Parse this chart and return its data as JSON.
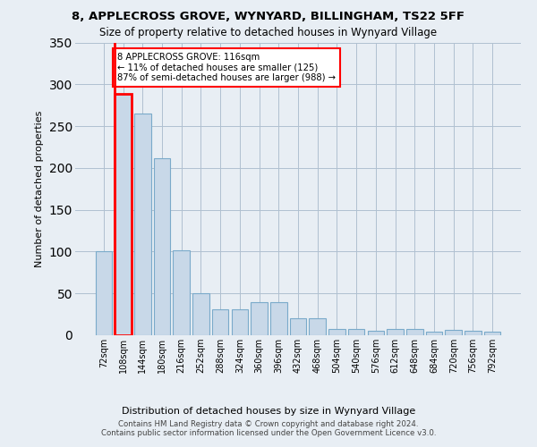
{
  "title": "8, APPLECROSS GROVE, WYNYARD, BILLINGHAM, TS22 5FF",
  "subtitle": "Size of property relative to detached houses in Wynyard Village",
  "xlabel": "Distribution of detached houses by size in Wynyard Village",
  "ylabel": "Number of detached properties",
  "footer_line1": "Contains HM Land Registry data © Crown copyright and database right 2024.",
  "footer_line2": "Contains public sector information licensed under the Open Government Licence v3.0.",
  "bar_labels": [
    "72sqm",
    "108sqm",
    "144sqm",
    "180sqm",
    "216sqm",
    "252sqm",
    "288sqm",
    "324sqm",
    "360sqm",
    "396sqm",
    "432sqm",
    "468sqm",
    "504sqm",
    "540sqm",
    "576sqm",
    "612sqm",
    "648sqm",
    "684sqm",
    "720sqm",
    "756sqm",
    "792sqm"
  ],
  "bar_values": [
    100,
    289,
    265,
    212,
    101,
    50,
    31,
    31,
    40,
    40,
    20,
    20,
    7,
    7,
    5,
    8,
    8,
    4,
    6,
    5,
    4
  ],
  "bar_color": "#c8d8e8",
  "bar_edge_color": "#7aaaca",
  "highlight_bar_index": 1,
  "highlight_bar_edge_color": "red",
  "vline_color": "red",
  "annotation_text": "8 APPLECROSS GROVE: 116sqm\n← 11% of detached houses are smaller (125)\n87% of semi-detached houses are larger (988) →",
  "annotation_box_color": "white",
  "annotation_box_edge_color": "red",
  "ylim": [
    0,
    350
  ],
  "yticks": [
    0,
    50,
    100,
    150,
    200,
    250,
    300,
    350
  ],
  "background_color": "#e8eef4",
  "plot_background_color": "#e8eef4",
  "grid_color": "#b0c0d0"
}
